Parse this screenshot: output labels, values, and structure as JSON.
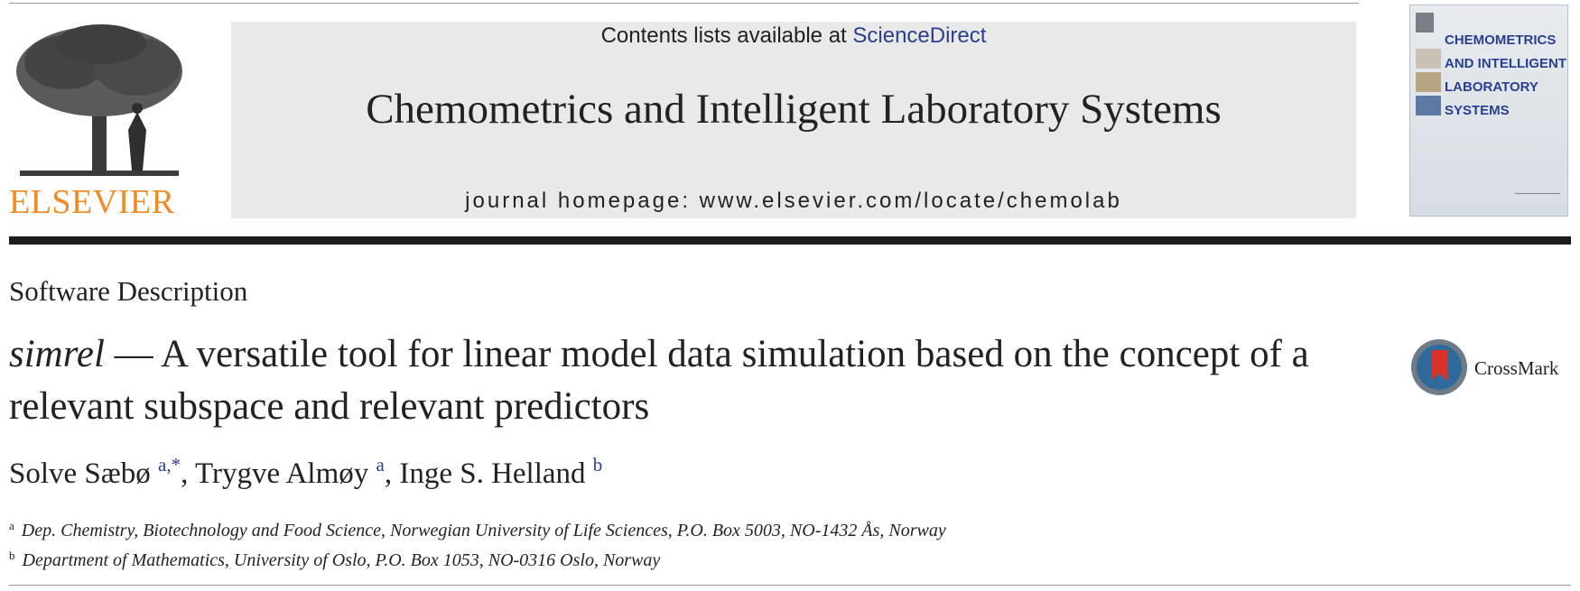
{
  "publisher": {
    "wordmark": "ELSEVIER"
  },
  "masthead": {
    "contents_prefix": "Contents lists available at ",
    "contents_link": "ScienceDirect",
    "journal_title": "Chemometrics and Intelligent Laboratory Systems",
    "homepage": "journal homepage: www.elsevier.com/locate/chemolab"
  },
  "cover": {
    "title_lines": [
      "CHEMOMETRICS",
      "AND INTELLIGENT",
      "LABORATORY",
      "SYSTEMS"
    ]
  },
  "article": {
    "section": "Software Description",
    "title_pkg": "simrel",
    "title_rest": " — A versatile tool for linear model data simulation based on the concept of a relevant subspace and relevant predictors",
    "authors": [
      {
        "name": "Solve Sæbø",
        "aff": "a,*"
      },
      {
        "name": "Trygve Almøy",
        "aff": "a"
      },
      {
        "name": "Inge S. Helland",
        "aff": "b"
      }
    ],
    "author_sep": ", ",
    "affiliations": [
      {
        "mark": "a",
        "text": "Dep. Chemistry, Biotechnology and Food Science, Norwegian University of Life Sciences, P.O. Box 5003, NO-1432 Ås, Norway"
      },
      {
        "mark": "b",
        "text": "Department of Mathematics, University of Oslo, P.O. Box 1053, NO-0316 Oslo, Norway"
      }
    ],
    "crossmark_label": "CrossMark"
  },
  "colors": {
    "accent": "#f08a24",
    "link": "#2a3f8f",
    "rule": "#1c1c1c"
  }
}
